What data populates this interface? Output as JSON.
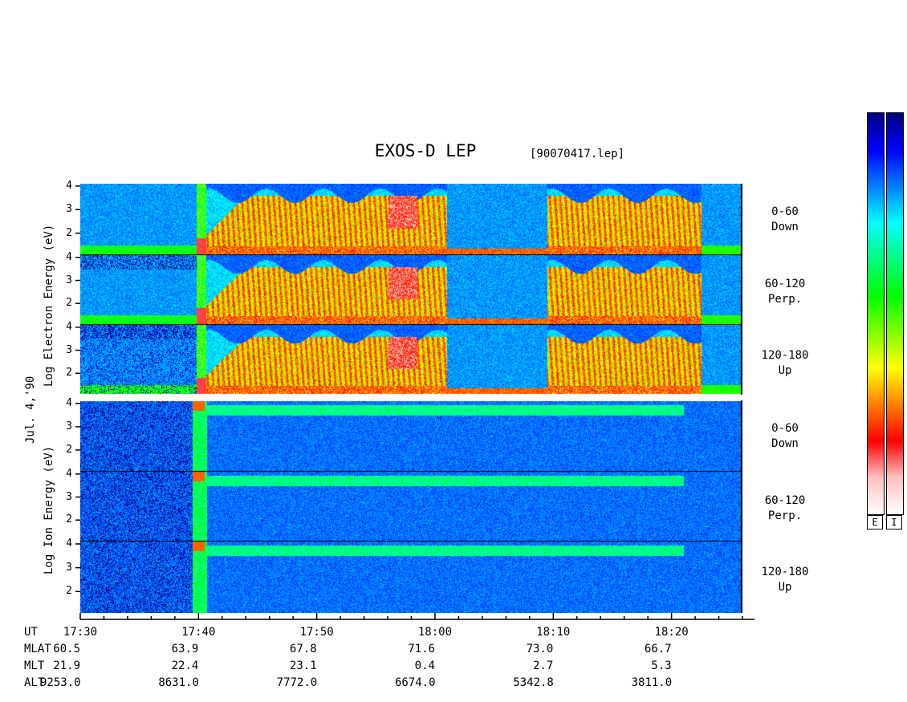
{
  "chart_data": {
    "type": "heatmap",
    "title": "EXOS-D LEP",
    "file_label": "[90070417.lep]",
    "date_label": "Jul. 4,'90",
    "electron_ylabel": "Log   Electron   Energy (eV)",
    "ion_ylabel": "Log   Ion   Energy (eV)",
    "y_ticks": [
      "2",
      "3",
      "4"
    ],
    "ylim": [
      1.1,
      4.1
    ],
    "panels": [
      {
        "group": "Electron",
        "pitch": "0-60",
        "dir": "Down"
      },
      {
        "group": "Electron",
        "pitch": "60-120",
        "dir": "Perp."
      },
      {
        "group": "Electron",
        "pitch": "120-180",
        "dir": "Up"
      },
      {
        "group": "Ion",
        "pitch": "0-60",
        "dir": "Down"
      },
      {
        "group": "Ion",
        "pitch": "60-120",
        "dir": "Perp."
      },
      {
        "group": "Ion",
        "pitch": "120-180",
        "dir": "Up"
      }
    ],
    "x_axis": {
      "rows": [
        {
          "label": "UT",
          "values": [
            "17:30",
            "17:40",
            "17:50",
            "18:00",
            "18:10",
            "18:20"
          ]
        },
        {
          "label": "MLAT",
          "values": [
            "60.5",
            "63.9",
            "67.8",
            "71.6",
            "73.0",
            "66.7"
          ]
        },
        {
          "label": "MLT",
          "values": [
            "21.9",
            "22.4",
            "23.1",
            "0.4",
            "2.7",
            "5.3"
          ]
        },
        {
          "label": "ALT",
          "values": [
            "9253.0",
            "8631.0",
            "7772.0",
            "6674.0",
            "5342.8",
            "3811.0"
          ]
        }
      ],
      "ut_minutes": [
        0,
        10,
        20,
        30,
        40,
        50
      ],
      "xlim_minutes": [
        0,
        56
      ]
    },
    "colorbar": {
      "labels": [
        "E",
        "I"
      ],
      "colors": [
        "#000080",
        "#0000ff",
        "#0080ff",
        "#00ffff",
        "#00ff80",
        "#00ff00",
        "#80ff00",
        "#ffff00",
        "#ff8000",
        "#ff0000",
        "#ffc0c0",
        "#ffffff"
      ]
    }
  }
}
